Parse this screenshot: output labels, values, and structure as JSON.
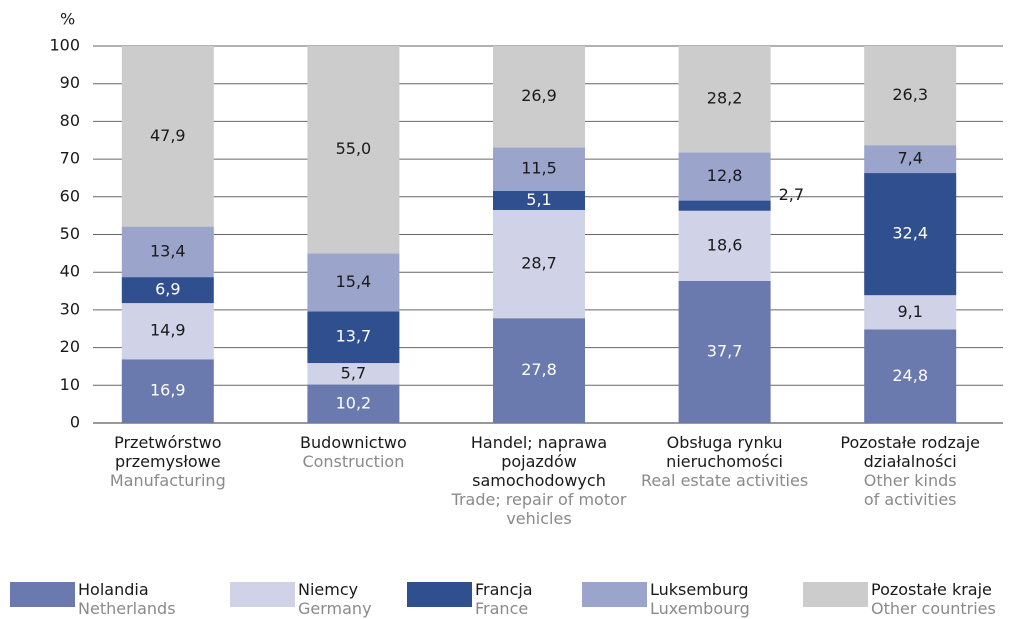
{
  "chart_data": {
    "type": "stacked_bar",
    "ylabel": "%",
    "categories": [
      "Przetwórstwo\nprzemysłowe",
      "Budownictwo",
      "Handel; naprawa\npojazdów\nsamochodowych",
      "Obsługa rynku\nnieruchomości",
      "Pozostałe rodzaje\ndziałalności"
    ],
    "categories_en": [
      "Manufacturing",
      "Construction",
      "Trade; repair of motor\nvehicles",
      "Real estate activities",
      "Other kinds\nof activities"
    ],
    "series": [
      {
        "name": "Holandia",
        "name_en": "Netherlands",
        "color": "#6b7aae",
        "values": [
          16.9,
          10.2,
          27.8,
          37.7,
          24.8
        ],
        "value_labels": [
          "16,9",
          "10,2",
          "27,8",
          "37,7",
          "24,8"
        ]
      },
      {
        "name": "Niemcy",
        "name_en": "Germany",
        "color": "#d0d3e8",
        "values": [
          14.9,
          5.7,
          28.7,
          18.6,
          9.1
        ],
        "value_labels": [
          "14,9",
          "5,7",
          "28,7",
          "18,6",
          "9,1"
        ]
      },
      {
        "name": "Francja",
        "name_en": "France",
        "color": "#2f4f8e",
        "values": [
          6.9,
          13.7,
          5.1,
          2.7,
          32.4
        ],
        "value_labels": [
          "6,9",
          "13,7",
          "5,1",
          "2,7",
          "32,4"
        ]
      },
      {
        "name": "Luksemburg",
        "name_en": "Luxembourg",
        "color": "#9ba5cb",
        "values": [
          13.4,
          15.4,
          11.5,
          12.8,
          7.4
        ],
        "value_labels": [
          "13,4",
          "15,4",
          "11,5",
          "12,8",
          "7,4"
        ]
      },
      {
        "name": "Pozostałe kraje",
        "name_en": "Other countries",
        "color": "#cccccc",
        "values": [
          47.9,
          55.0,
          26.9,
          28.2,
          26.3
        ],
        "value_labels": [
          "47,9",
          "55,0",
          "26,9",
          "28,2",
          "26,3"
        ]
      }
    ],
    "ylim": [
      0,
      100
    ],
    "yticks": [
      0,
      10,
      20,
      30,
      40,
      50,
      60,
      70,
      80,
      90,
      100
    ],
    "grid": true
  }
}
